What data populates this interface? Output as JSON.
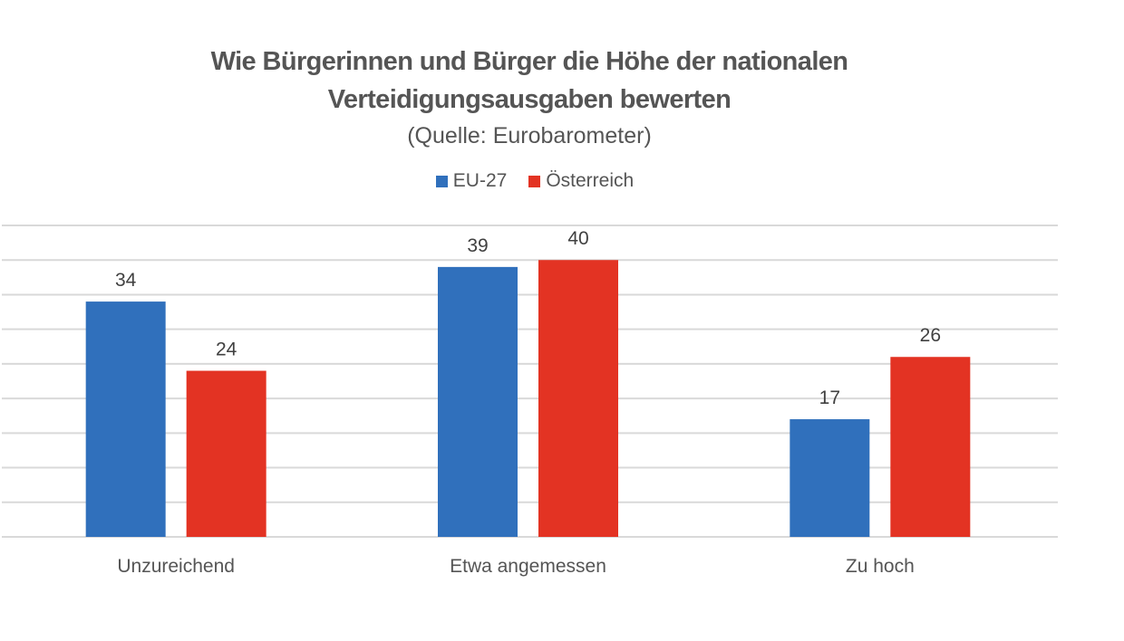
{
  "chart_data": {
    "type": "bar",
    "title_line1": "Wie Bürgerinnen und Bürger die Höhe der nationalen",
    "title_line2": "Verteidigungsausgaben bewerten",
    "subtitle": "(Quelle: Eurobarometer)",
    "categories": [
      "Unzureichend",
      "Etwa angemessen",
      "Zu hoch"
    ],
    "series": [
      {
        "name": "EU-27",
        "color": "#3070BC",
        "values": [
          34,
          39,
          17
        ]
      },
      {
        "name": "Österreich",
        "color": "#E33323",
        "values": [
          24,
          40,
          26
        ]
      }
    ],
    "xlabel": "",
    "ylabel": "",
    "ylim": [
      0,
      45
    ],
    "grid_step": 5,
    "grid": true,
    "legend_position": "top-center",
    "data_labels": true
  }
}
